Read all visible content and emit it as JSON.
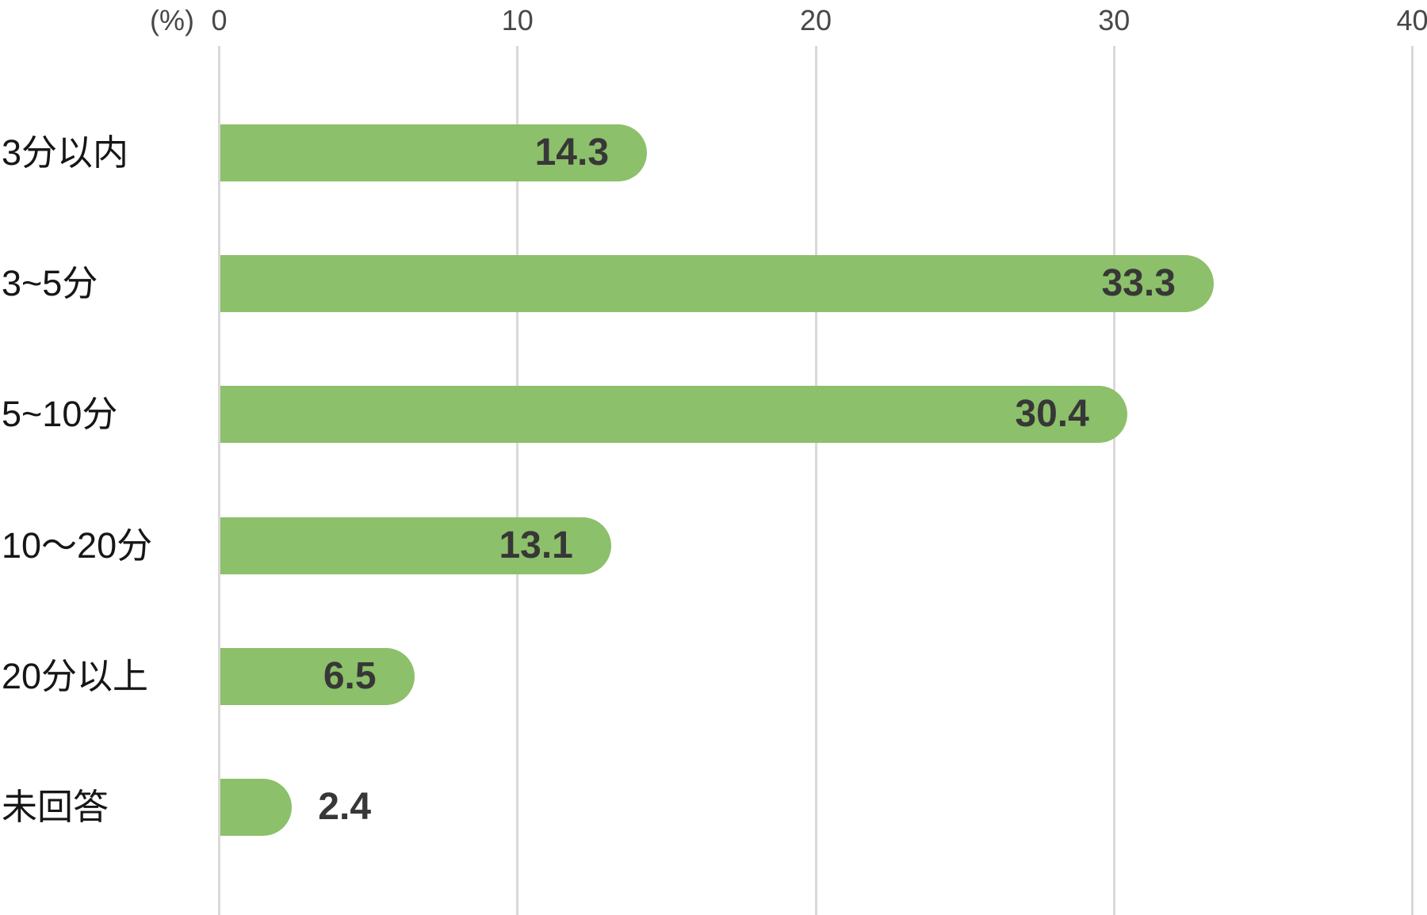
{
  "chart": {
    "unit_label": "(%)",
    "axis_ticks": [
      "0",
      "10",
      "20",
      "30",
      "40"
    ]
  },
  "chart_data": {
    "type": "bar",
    "orientation": "horizontal",
    "title": "",
    "xlabel": "(%)",
    "ylabel": "",
    "categories": [
      "3分以内",
      "3~5分",
      "5~10分",
      "10〜20分",
      "20分以上",
      "未回答"
    ],
    "values": [
      14.3,
      33.3,
      30.4,
      13.1,
      6.5,
      2.4
    ],
    "value_labels": [
      "14.3",
      "33.3",
      "30.4",
      "13.1",
      "6.5",
      "2.4"
    ],
    "xlim": [
      0,
      40
    ],
    "x_ticks": [
      0,
      10,
      20,
      30,
      40
    ],
    "grid": true,
    "legend": false,
    "colors": {
      "bar_fill": "#8cc06a",
      "gridline": "#d9d9d9",
      "tick_text": "#484848",
      "category_text": "#161616",
      "value_text": "#373737",
      "background": "#ffffff"
    }
  }
}
